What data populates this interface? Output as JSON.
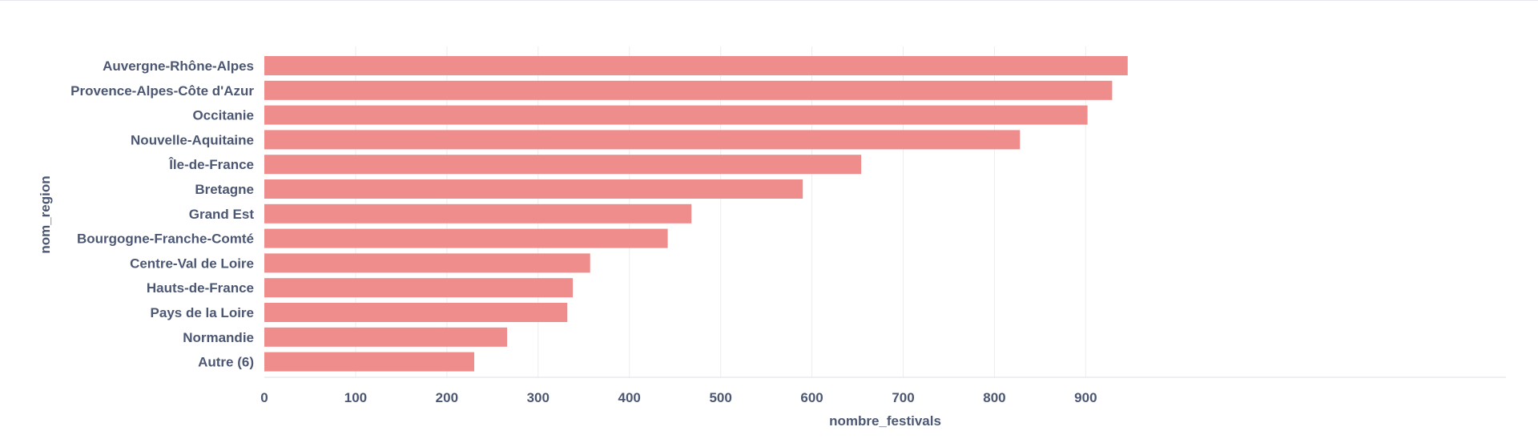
{
  "chart_data": {
    "type": "bar",
    "orientation": "horizontal",
    "xlabel": "nombre_festivals",
    "ylabel": "nom_region",
    "xlim": [
      0,
      1000
    ],
    "xticks": [
      0,
      100,
      200,
      300,
      400,
      500,
      600,
      700,
      800,
      900
    ],
    "grid": "vertical",
    "categories": [
      "Auvergne-Rhône-Alpes",
      "Provence-Alpes-Côte d'Azur",
      "Occitanie",
      "Nouvelle-Aquitaine",
      "Île-de-France",
      "Bretagne",
      "Grand Est",
      "Bourgogne-Franche-Comté",
      "Centre-Val de Loire",
      "Hauts-de-France",
      "Pays de la Loire",
      "Normandie",
      "Autre (6)"
    ],
    "values": [
      946,
      929,
      902,
      828,
      654,
      590,
      468,
      442,
      357,
      338,
      332,
      266,
      230
    ],
    "colors": {
      "bar": "#ef8c8c",
      "grid": "#ebedf0",
      "axis": "#dcdfe4",
      "text": "#4c5773"
    }
  }
}
